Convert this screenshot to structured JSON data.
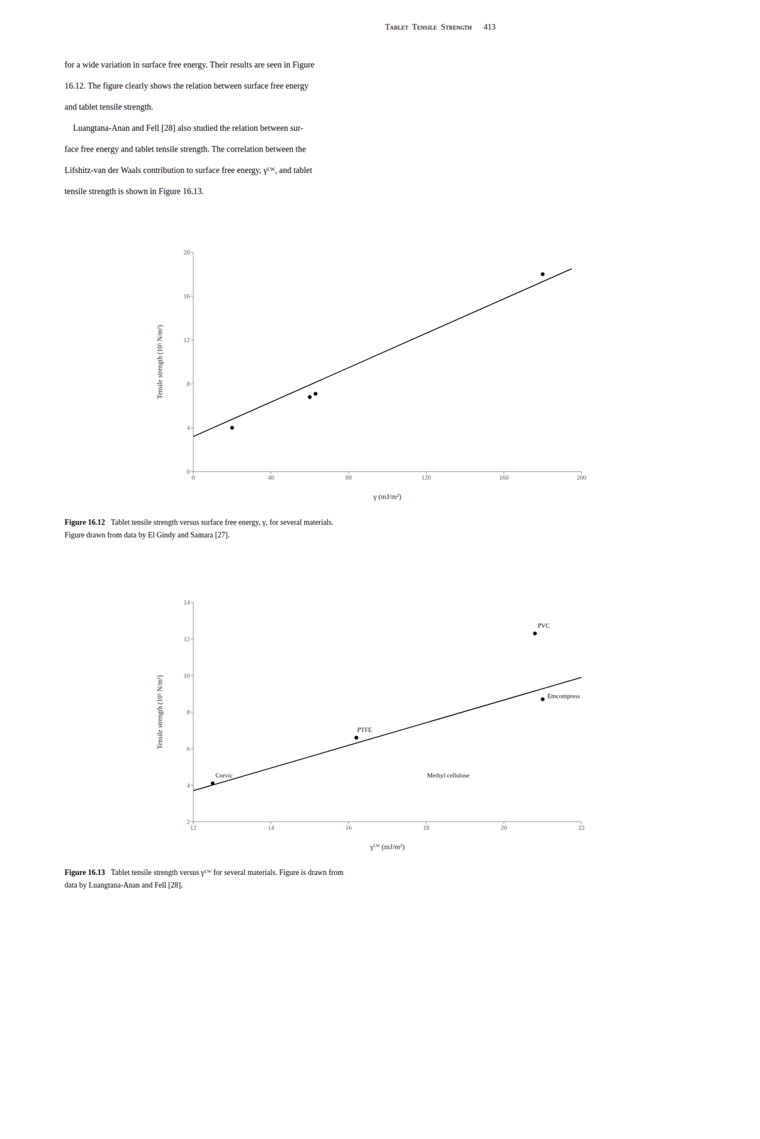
{
  "page": {
    "header": "Tᴀʙʟᴇᴛ  Tᴇɴsɪʟᴇ  Sᴛʀᴇɴɢᴛʜ",
    "page_number": "413",
    "body": [
      "for a wide variation in surface free energy. Their results are seen in Figure",
      "16.12. The figure clearly shows the relation between surface free energy",
      "and tablet tensile strength.",
      "    Luangtana-Anan and Fell [28] also studied the relation between sur-",
      "face free energy and tablet tensile strength. The correlation between the",
      "Lifshitz-van der Waals contribution to surface free energy, γᴸᵂ, and tablet",
      "tensile strength is shown in Figure 16.13."
    ]
  },
  "chart_data": [
    {
      "type": "scatter",
      "xlabel": "γ (mJ/m²)",
      "ylabel": "Tensile strength (10⁵ N/m²)",
      "xlim": [
        0,
        200
      ],
      "ylim": [
        0,
        20
      ],
      "xticks": [
        0,
        40,
        80,
        120,
        160,
        200
      ],
      "yticks": [
        0,
        4,
        8,
        12,
        16,
        20
      ],
      "grid": false,
      "series": [
        {
          "type": "scatter",
          "color": "#000000",
          "marker": "circle",
          "x": [
            20,
            60,
            63,
            180
          ],
          "values": [
            4.0,
            6.8,
            7.1,
            18.0
          ]
        },
        {
          "type": "line",
          "color": "#000000",
          "line_style": "solid",
          "x": [
            0,
            195
          ],
          "values": [
            3.2,
            18.5
          ]
        }
      ],
      "annotations": [],
      "caption": {
        "label": "Figure 16.12",
        "lines": [
          "Tablet tensile strength versus surface free energy, γ, for several materials.",
          "Figure drawn from data by El Gindy and Samara [27]."
        ]
      }
    },
    {
      "type": "scatter",
      "xlabel": "γᴸᵂ (mJ/m²)",
      "ylabel": "Tensile strength (10⁵ N/m²)",
      "xlim": [
        12,
        22
      ],
      "ylim": [
        2,
        14
      ],
      "xticks": [
        12,
        14,
        16,
        18,
        20,
        22
      ],
      "yticks": [
        2,
        4,
        6,
        8,
        10,
        12,
        14
      ],
      "grid": false,
      "series": [
        {
          "type": "scatter",
          "color": "#000000",
          "marker": "circle",
          "x": [
            12.5,
            16.2,
            20.8,
            21.0
          ],
          "values": [
            4.1,
            6.6,
            12.3,
            8.7
          ]
        },
        {
          "type": "line",
          "color": "#000000",
          "line_style": "solid",
          "x": [
            12.0,
            22.0
          ],
          "values": [
            3.7,
            9.9
          ]
        }
      ],
      "annotations": [
        {
          "text": "Corvic",
          "x": 12.55,
          "y": 4.35
        },
        {
          "text": "PTFE",
          "x": 16.2,
          "y": 6.85
        },
        {
          "text": "PVC",
          "x": 20.85,
          "y": 12.55
        },
        {
          "text": "Emcompress",
          "x": 21.1,
          "y": 8.7
        },
        {
          "text": "Methyl cellulose",
          "x": 18.0,
          "y": 4.35
        }
      ],
      "caption": {
        "label": "Figure 16.13",
        "lines": [
          "Tablet tensile strength versus γᴸᵂ for several materials. Figure is drawn from",
          "data by Luangtana-Anan and Fell [28]."
        ]
      }
    }
  ]
}
